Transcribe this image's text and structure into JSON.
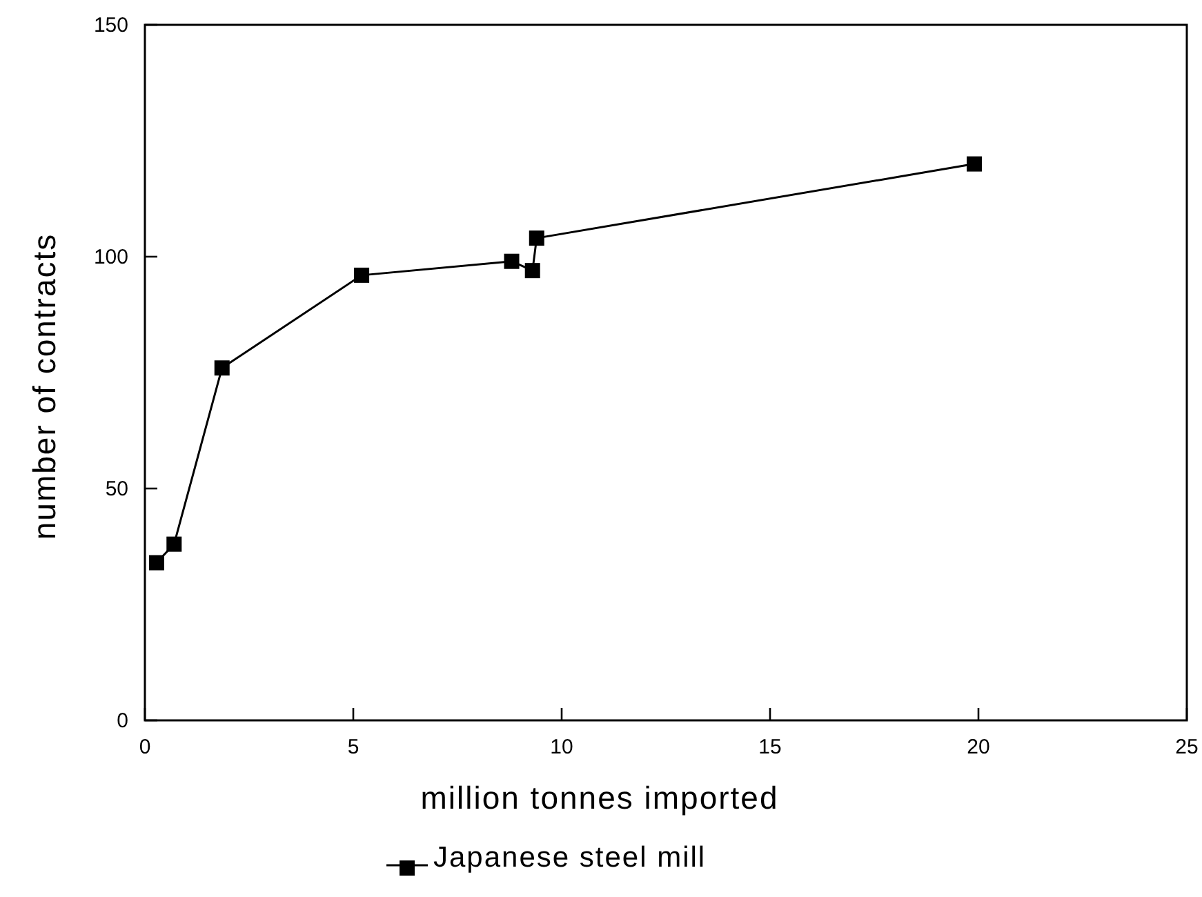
{
  "chart_data": {
    "type": "line",
    "xlabel": "million tonnes imported",
    "ylabel": "number of contracts",
    "x": [
      0.28,
      0.7,
      1.85,
      5.2,
      8.8,
      9.3,
      9.4,
      19.9
    ],
    "series": [
      {
        "name": "Japanese steel mill",
        "color": "#000000",
        "values": [
          34,
          38,
          76,
          96,
          99,
          97,
          104,
          120
        ]
      }
    ],
    "xlim": [
      0,
      25
    ],
    "xticks": [
      0,
      5,
      10,
      15,
      20,
      25
    ],
    "ylim": [
      0,
      150
    ],
    "yticks": [
      0,
      50,
      100,
      150
    ],
    "grid": false,
    "legend": "bottom",
    "marker": "square",
    "line_style": "solid"
  }
}
